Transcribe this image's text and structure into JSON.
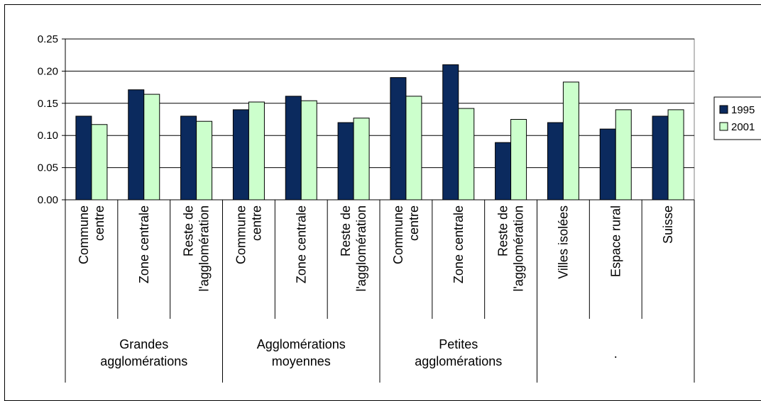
{
  "chart_data": {
    "type": "bar",
    "ylim": [
      0,
      0.25
    ],
    "yticks": [
      "0.00",
      "0.05",
      "0.10",
      "0.15",
      "0.20",
      "0.25"
    ],
    "ytick_values": [
      0,
      0.05,
      0.1,
      0.15,
      0.2,
      0.25
    ],
    "grid": true,
    "legend_position": "right",
    "categories": [
      [
        "Commune",
        "centre"
      ],
      [
        "Zone centrale"
      ],
      [
        "Reste de",
        "l'agglomération"
      ],
      [
        "Commune",
        "centre"
      ],
      [
        "Zone centrale"
      ],
      [
        "Reste de",
        "l'agglomération"
      ],
      [
        "Commune",
        "centre"
      ],
      [
        "Zone centrale"
      ],
      [
        "Reste de",
        "l'agglomération"
      ],
      [
        "Villes isolées"
      ],
      [
        "Espace rural"
      ],
      [
        "Suisse"
      ]
    ],
    "groups": [
      {
        "label": [
          "Grandes",
          "agglomérations"
        ],
        "span": 3
      },
      {
        "label": [
          "Agglomérations",
          "moyennes"
        ],
        "span": 3
      },
      {
        "label": [
          "Petites",
          "agglomérations"
        ],
        "span": 3
      },
      {
        "label": [
          "."
        ],
        "span": 3
      }
    ],
    "series": [
      {
        "name": "1995",
        "color": "#0b2a5e",
        "values": [
          0.13,
          0.171,
          0.13,
          0.14,
          0.161,
          0.12,
          0.19,
          0.21,
          0.089,
          0.12,
          0.11,
          0.13
        ]
      },
      {
        "name": "2001",
        "color": "#ccffcc",
        "values": [
          0.117,
          0.164,
          0.122,
          0.152,
          0.154,
          0.127,
          0.161,
          0.142,
          0.125,
          0.183,
          0.14,
          0.14
        ]
      }
    ]
  }
}
